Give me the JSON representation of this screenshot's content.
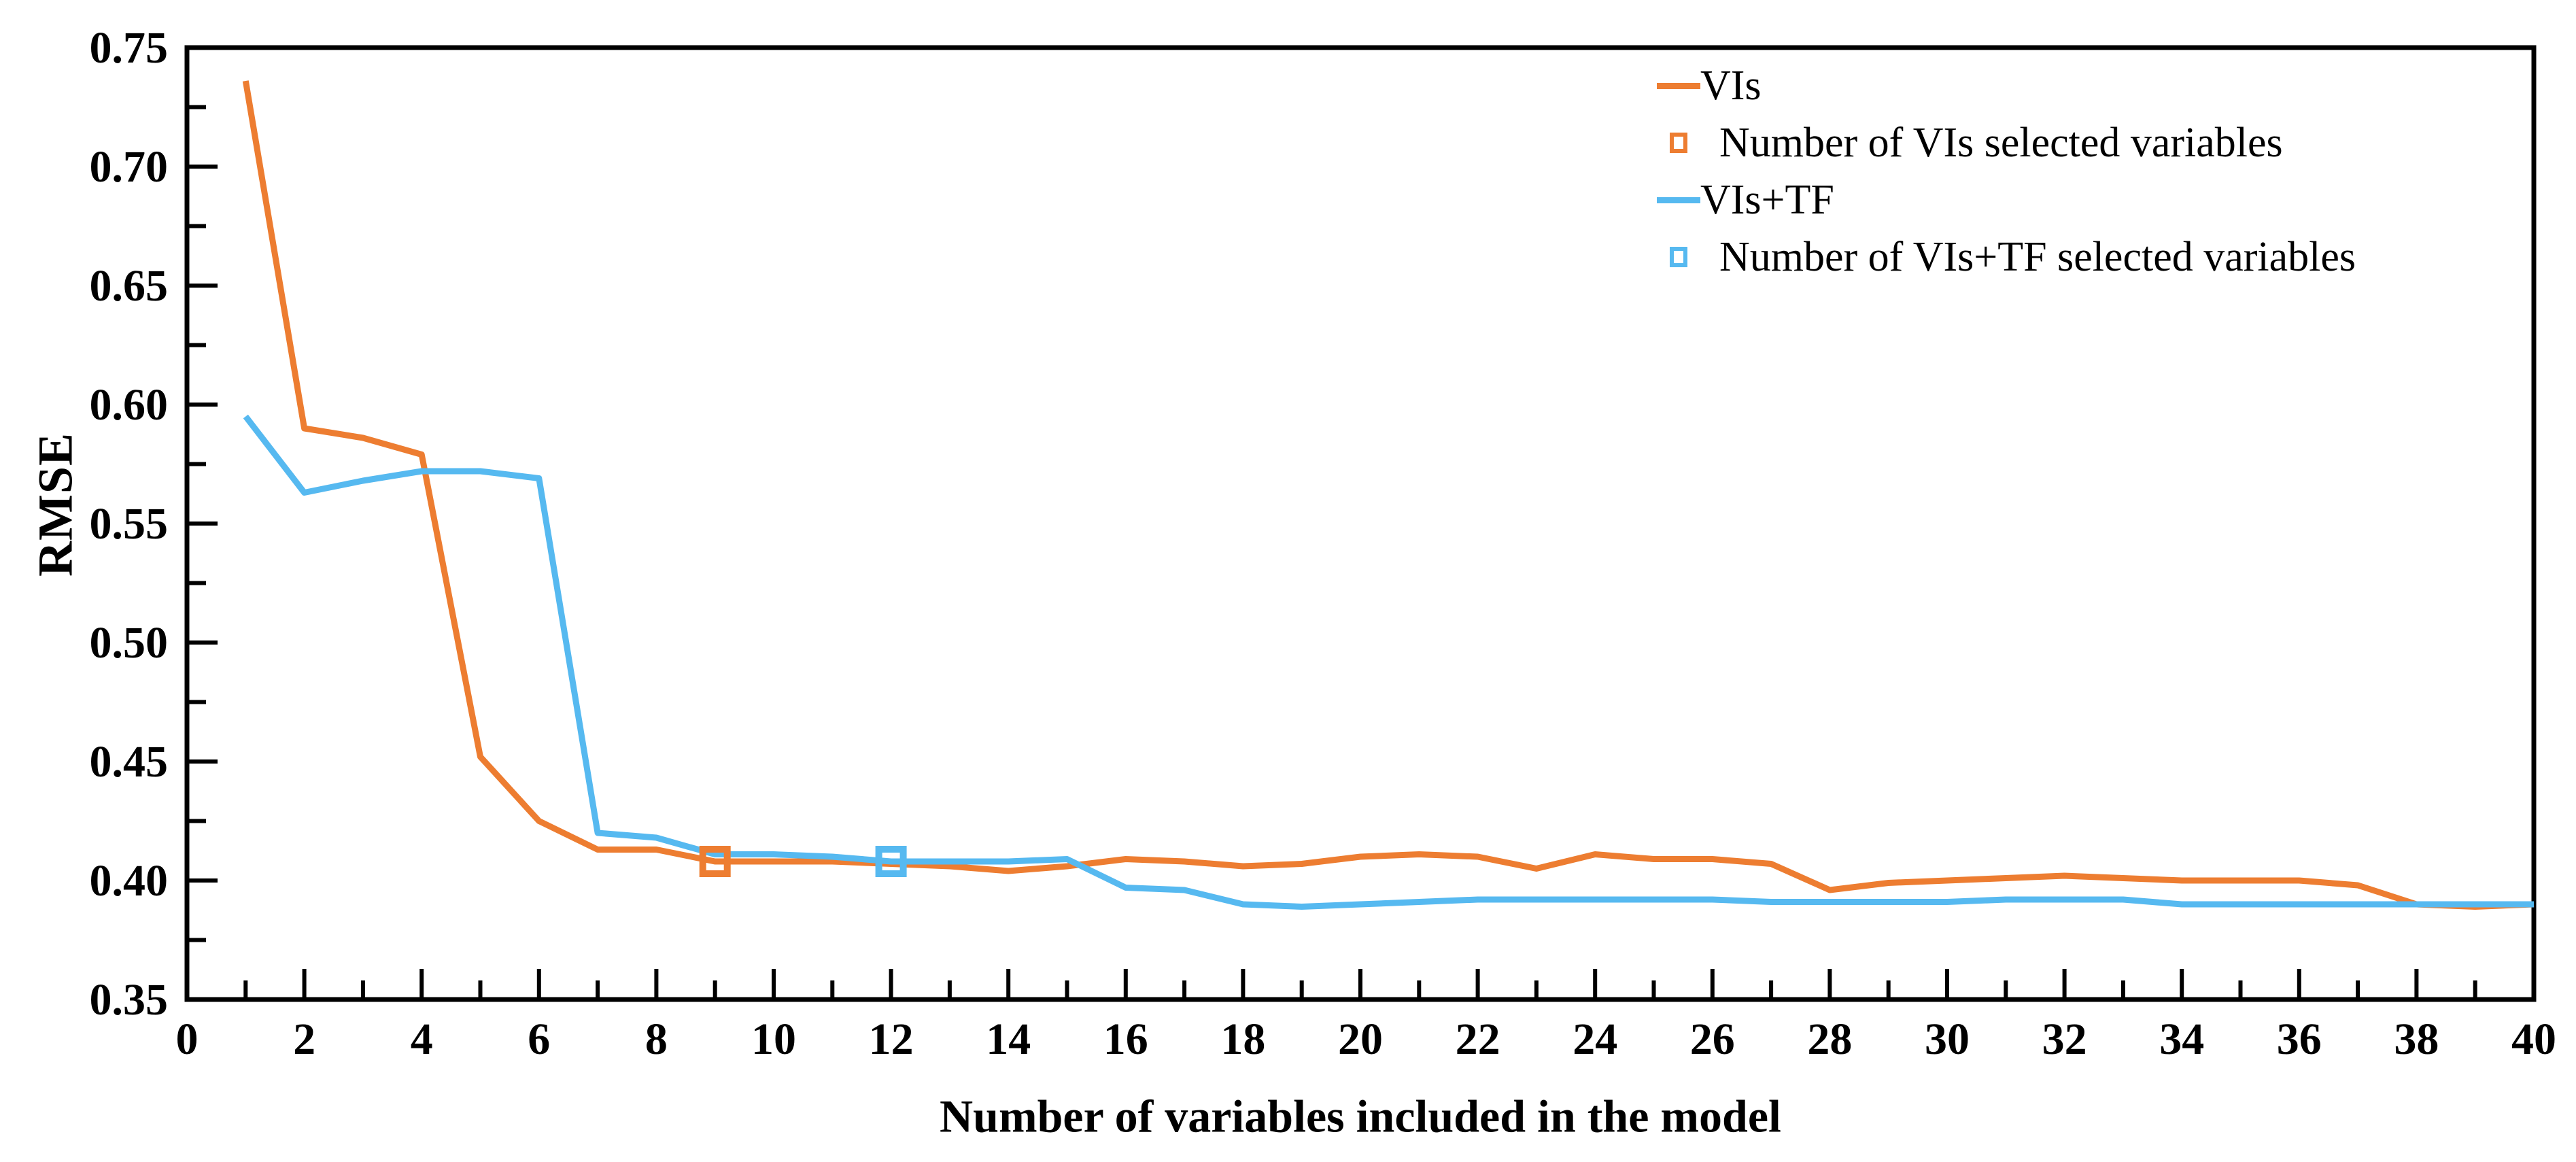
{
  "chart_data": {
    "type": "line",
    "title": "",
    "xlabel": "Number of variables included in the model",
    "ylabel": "RMSE",
    "xlim": [
      0,
      40
    ],
    "ylim": [
      0.35,
      0.75
    ],
    "x_major_step": 2,
    "x_minor_step": 1,
    "y_major_step": 0.05,
    "y_minor_step": 0.025,
    "grid": "off",
    "legend_position": "top-right-inside",
    "x_tick_labels": [
      "0",
      "2",
      "4",
      "6",
      "8",
      "10",
      "12",
      "14",
      "16",
      "18",
      "20",
      "22",
      "24",
      "26",
      "28",
      "30",
      "32",
      "34",
      "36",
      "38",
      "40"
    ],
    "y_tick_labels": [
      "0.35",
      "0.40",
      "0.45",
      "0.50",
      "0.55",
      "0.60",
      "0.65",
      "0.70",
      "0.75"
    ],
    "x": [
      1,
      2,
      3,
      4,
      5,
      6,
      7,
      8,
      9,
      10,
      11,
      12,
      13,
      14,
      15,
      16,
      17,
      18,
      19,
      20,
      21,
      22,
      23,
      24,
      25,
      26,
      27,
      28,
      29,
      30,
      31,
      32,
      33,
      34,
      35,
      36,
      37,
      38,
      39,
      40
    ],
    "series": [
      {
        "name": "VIs",
        "color": "#ED7D31",
        "values": [
          0.736,
          0.59,
          0.586,
          0.579,
          0.452,
          0.425,
          0.413,
          0.413,
          0.408,
          0.408,
          0.408,
          0.407,
          0.406,
          0.404,
          0.406,
          0.409,
          0.408,
          0.406,
          0.407,
          0.41,
          0.411,
          0.41,
          0.405,
          0.411,
          0.409,
          0.409,
          0.407,
          0.396,
          0.399,
          0.4,
          0.401,
          0.402,
          0.401,
          0.4,
          0.4,
          0.4,
          0.398,
          0.39,
          0.389,
          0.39
        ]
      },
      {
        "name": "VIs+TF",
        "color": "#56B9F0",
        "values": [
          0.595,
          0.563,
          0.568,
          0.572,
          0.572,
          0.569,
          0.42,
          0.418,
          0.411,
          0.411,
          0.41,
          0.408,
          0.408,
          0.408,
          0.409,
          0.397,
          0.396,
          0.39,
          0.389,
          0.39,
          0.391,
          0.392,
          0.392,
          0.392,
          0.392,
          0.392,
          0.391,
          0.391,
          0.391,
          0.391,
          0.392,
          0.392,
          0.392,
          0.39,
          0.39,
          0.39,
          0.39,
          0.39,
          0.39,
          0.39
        ]
      }
    ],
    "markers": [
      {
        "name": "Number of VIs selected variables",
        "color": "#ED7D31",
        "x": 9,
        "y": 0.408
      },
      {
        "name": "Number of VIs+TF selected variables",
        "color": "#56B9F0",
        "x": 12,
        "y": 0.408
      }
    ],
    "legend": [
      {
        "label": "VIs",
        "swatch": "line",
        "color": "#ED7D31"
      },
      {
        "label": "Number of VIs selected variables",
        "swatch": "square",
        "color": "#ED7D31"
      },
      {
        "label": "VIs+TF",
        "swatch": "line",
        "color": "#56B9F0"
      },
      {
        "label": "Number of VIs+TF selected variables",
        "swatch": "square",
        "color": "#56B9F0"
      }
    ]
  },
  "style": {
    "axis_color": "#000000",
    "background": "#ffffff"
  }
}
